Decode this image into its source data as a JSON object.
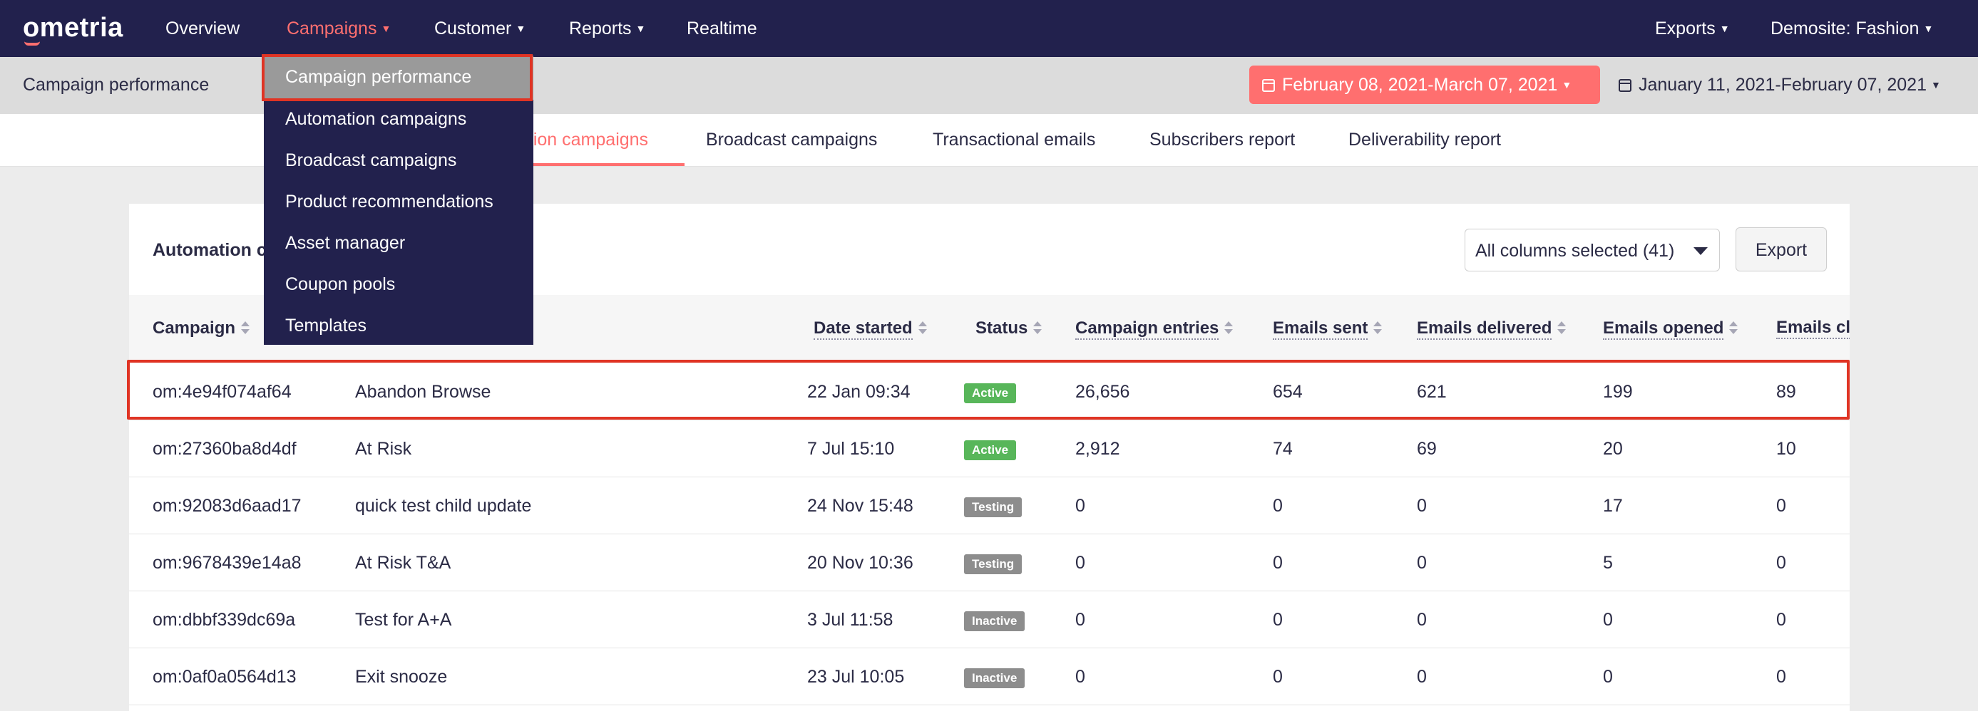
{
  "app": {
    "logo": "ometria"
  },
  "nav": {
    "items": [
      {
        "label": "Overview"
      },
      {
        "label": "Campaigns"
      },
      {
        "label": "Customer"
      },
      {
        "label": "Reports"
      },
      {
        "label": "Realtime"
      }
    ],
    "right": [
      {
        "label": "Exports"
      },
      {
        "label": "Demosite: Fashion"
      }
    ]
  },
  "subheader": {
    "title": "Campaign performance",
    "date_range_primary": "February 08, 2021-March 07, 2021",
    "date_range_compare": "January 11, 2021-February 07, 2021"
  },
  "tabs": [
    {
      "label": "ation campaigns"
    },
    {
      "label": "Broadcast campaigns"
    },
    {
      "label": "Transactional emails"
    },
    {
      "label": "Subscribers report"
    },
    {
      "label": "Deliverability report"
    }
  ],
  "dropdown": {
    "items": [
      {
        "label": "Campaign performance"
      },
      {
        "label": "Automation campaigns"
      },
      {
        "label": "Broadcast campaigns"
      },
      {
        "label": "Product recommendations"
      },
      {
        "label": "Asset manager"
      },
      {
        "label": "Coupon pools"
      },
      {
        "label": "Templates"
      }
    ]
  },
  "card": {
    "title": "Automation c",
    "columns_select": "All columns selected (41)",
    "export_label": "Export"
  },
  "table": {
    "columns": [
      "Campaign",
      "Date started",
      "Status",
      "Campaign entries",
      "Emails sent",
      "Emails delivered",
      "Emails opened",
      "Emails cl"
    ],
    "rows": [
      {
        "id": "om:4e94f074af64",
        "name": "Abandon Browse",
        "date": "22 Jan 09:34",
        "status": "Active",
        "entries": "26,656",
        "sent": "654",
        "delivered": "621",
        "opened": "199",
        "clicked": "89"
      },
      {
        "id": "om:27360ba8d4df",
        "name": "At Risk",
        "date": "7 Jul 15:10",
        "status": "Active",
        "entries": "2,912",
        "sent": "74",
        "delivered": "69",
        "opened": "20",
        "clicked": "10"
      },
      {
        "id": "om:92083d6aad17",
        "name": "quick test child update",
        "date": "24 Nov 15:48",
        "status": "Testing",
        "entries": "0",
        "sent": "0",
        "delivered": "0",
        "opened": "17",
        "clicked": "0"
      },
      {
        "id": "om:9678439e14a8",
        "name": "At Risk T&A",
        "date": "20 Nov 10:36",
        "status": "Testing",
        "entries": "0",
        "sent": "0",
        "delivered": "0",
        "opened": "5",
        "clicked": "0"
      },
      {
        "id": "om:dbbf339dc69a",
        "name": "Test for A+A",
        "date": "3 Jul 11:58",
        "status": "Inactive",
        "entries": "0",
        "sent": "0",
        "delivered": "0",
        "opened": "0",
        "clicked": "0"
      },
      {
        "id": "om:0af0a0564d13",
        "name": "Exit snooze",
        "date": "23 Jul 10:05",
        "status": "Inactive",
        "entries": "0",
        "sent": "0",
        "delivered": "0",
        "opened": "0",
        "clicked": "0"
      }
    ]
  },
  "colors": {
    "nav_bg": "#22214d",
    "accent": "#ff6f6f",
    "active_badge": "#58b65a",
    "neutral_badge": "#8d8d8d",
    "highlight": "#e03424"
  }
}
